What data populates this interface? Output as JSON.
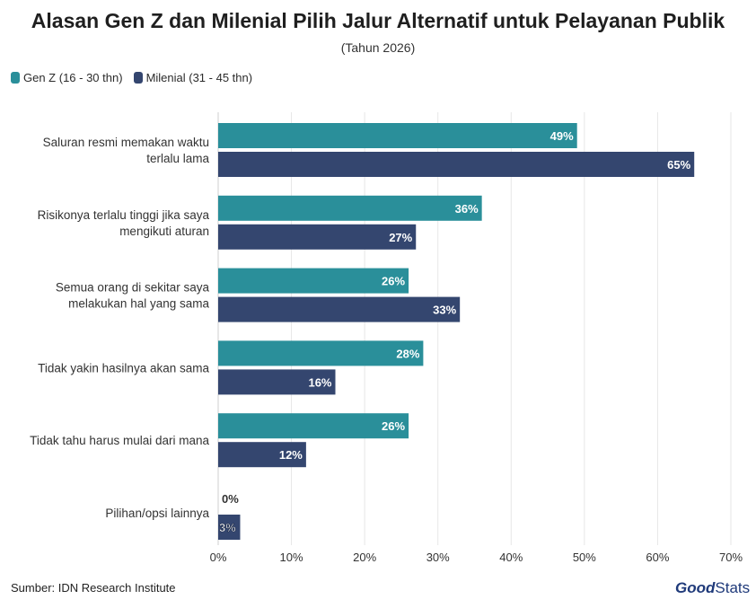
{
  "colors": {
    "genz": "#2a8f9a",
    "milenial": "#34466f"
  },
  "chart_data": {
    "type": "bar",
    "orientation": "horizontal",
    "title": "Alasan Gen Z dan Milenial Pilih Jalur Alternatif untuk Pelayanan Publik",
    "subtitle": "(Tahun 2026)",
    "categories": [
      [
        "Saluran resmi memakan waktu",
        "terlalu lama"
      ],
      [
        "Risikonya terlalu tinggi jika saya",
        "mengikuti aturan"
      ],
      [
        "Semua orang di sekitar saya",
        "melakukan hal yang sama"
      ],
      [
        "Tidak yakin hasilnya akan sama"
      ],
      [
        "Tidak tahu harus mulai dari mana"
      ],
      [
        "Pilihan/opsi lainnya"
      ]
    ],
    "series": [
      {
        "name": "Gen Z (16 - 30 thn)",
        "values": [
          49,
          36,
          26,
          28,
          26,
          0
        ]
      },
      {
        "name": "Milenial (31 - 45 thn)",
        "values": [
          65,
          27,
          33,
          16,
          12,
          3
        ]
      }
    ],
    "xlim": [
      0,
      70
    ],
    "xticks": [
      "0%",
      "10%",
      "20%",
      "30%",
      "40%",
      "50%",
      "60%",
      "70%"
    ],
    "value_suffix": "%",
    "grid": true,
    "legend_position": "top-left"
  },
  "footer": {
    "source": "Sumber: IDN Research Institute",
    "logo_good": "Good",
    "logo_stats": "Stats"
  }
}
